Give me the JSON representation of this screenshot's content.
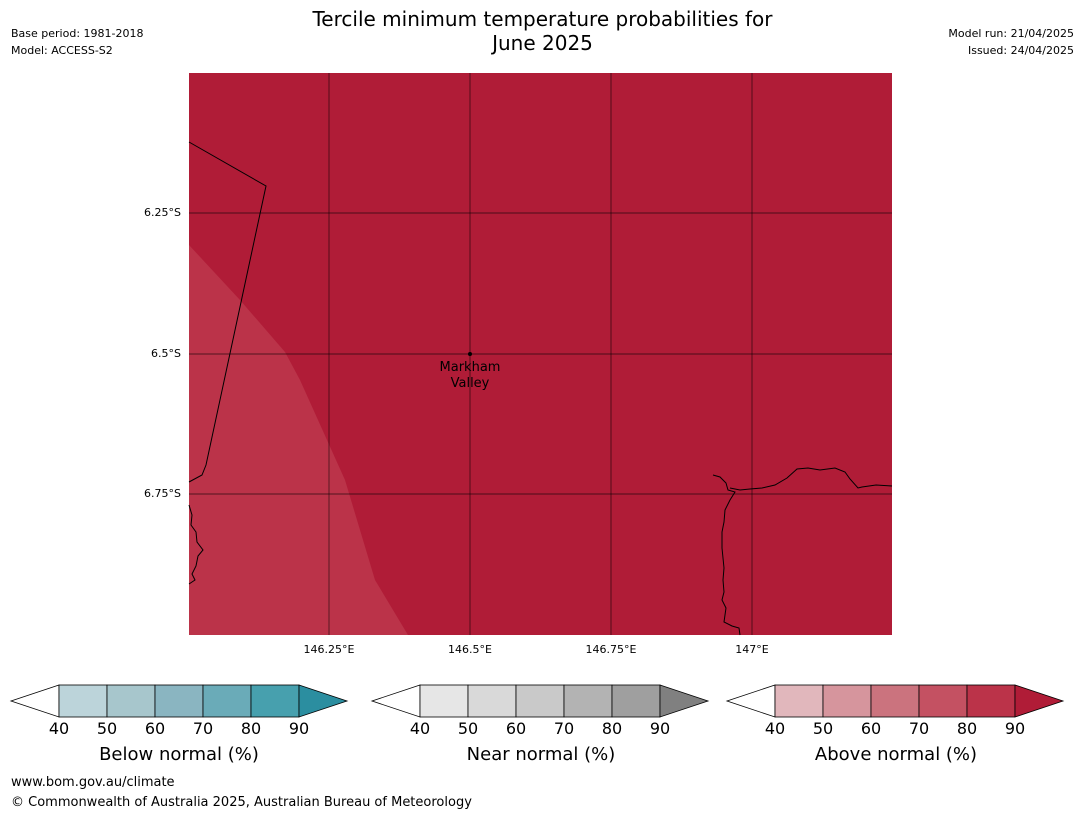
{
  "header": {
    "base_period": "Base period: 1981-2018",
    "model": "Model: ACCESS-S2",
    "title_line1": "Tercile minimum temperature probabilities for",
    "title_line2": "June 2025",
    "model_run": "Model run: 21/04/2025",
    "issued": "Issued: 24/04/2025"
  },
  "map": {
    "latitude_labels": [
      "6.25°S",
      "6.5°S",
      "6.75°S"
    ],
    "longitude_labels": [
      "146.25°E",
      "146.5°E",
      "146.75°E",
      "147°E"
    ],
    "place": {
      "name_line1": "Markham",
      "name_line2": "Valley"
    },
    "colors": {
      "main_fill": "#b01c37",
      "lighter_fill": "#bb3349",
      "gridline": "#000000",
      "coastline": "#000000"
    }
  },
  "colorbars": [
    {
      "title": "Below normal (%)",
      "ticks": [
        "40",
        "50",
        "60",
        "70",
        "80",
        "90"
      ],
      "colors": [
        "#ffffff",
        "#bcd4da",
        "#a7c6cc",
        "#8ab5c1",
        "#6aabb8",
        "#47a0ae",
        "#2b8ea0"
      ]
    },
    {
      "title": "Near normal (%)",
      "ticks": [
        "40",
        "50",
        "60",
        "70",
        "80",
        "90"
      ],
      "colors": [
        "#ffffff",
        "#e6e6e6",
        "#d9d9d9",
        "#c9c9c9",
        "#b3b3b3",
        "#9f9f9f",
        "#808080"
      ]
    },
    {
      "title": "Above normal (%)",
      "ticks": [
        "40",
        "50",
        "60",
        "70",
        "80",
        "90"
      ],
      "colors": [
        "#ffffff",
        "#e1b7bc",
        "#d6959d",
        "#cb737e",
        "#c45162",
        "#bb3349",
        "#b01c37"
      ]
    }
  ],
  "footer": {
    "url": "www.bom.gov.au/climate",
    "copyright": "© Commonwealth of Australia 2025, Australian Bureau of Meteorology"
  }
}
